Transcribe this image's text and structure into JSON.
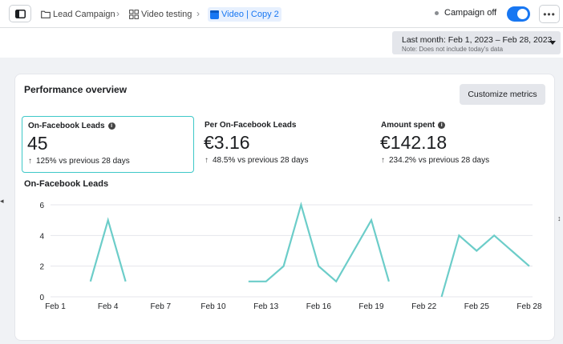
{
  "breadcrumb": [
    {
      "label": "Lead Campaign",
      "icon": "folder-icon"
    },
    {
      "label": "Video testing",
      "icon": "grid-icon"
    },
    {
      "label": "Video | Copy 2",
      "icon": "ad-icon"
    }
  ],
  "status": {
    "label": "Campaign off",
    "toggle_on": true
  },
  "date_range": {
    "label": "Last month: Feb 1, 2023 – Feb 28, 2023",
    "note": "Note: Does not include today's data"
  },
  "overview": {
    "title": "Performance overview",
    "customize_label": "Customize metrics"
  },
  "metrics": [
    {
      "label": "On-Facebook Leads",
      "value": "45",
      "change": "125% vs previous 28 days",
      "has_info": true
    },
    {
      "label": "Per On-Facebook Leads",
      "value": "€3.16",
      "change": "48.5% vs previous 28 days",
      "has_info": false
    },
    {
      "label": "Amount spent",
      "value": "€142.18",
      "change": "234.2% vs previous 28 days",
      "has_info": true
    }
  ],
  "chart_data": {
    "type": "line",
    "title": "On-Facebook Leads",
    "x": [
      1,
      2,
      3,
      4,
      5,
      6,
      7,
      8,
      9,
      10,
      11,
      12,
      13,
      14,
      15,
      16,
      17,
      18,
      19,
      20,
      21,
      22,
      23,
      24,
      25,
      26,
      27,
      28
    ],
    "tick_days": [
      1,
      4,
      7,
      10,
      13,
      16,
      19,
      22,
      25,
      28
    ],
    "tick_labels": [
      "Feb 1",
      "Feb 4",
      "Feb 7",
      "Feb 10",
      "Feb 13",
      "Feb 16",
      "Feb 19",
      "Feb 22",
      "Feb 25",
      "Feb 28"
    ],
    "series": [
      {
        "values": [
          null,
          null,
          1,
          5,
          1,
          null,
          null,
          null,
          null,
          null,
          null,
          1,
          1,
          2,
          6,
          2,
          1,
          3,
          5,
          1,
          null,
          null,
          0,
          4,
          3,
          4,
          3,
          2
        ]
      }
    ],
    "ylim": [
      0,
      6
    ],
    "yticks": [
      0,
      2,
      4,
      6
    ],
    "grid": true,
    "line_color": "#6ccdc9"
  }
}
